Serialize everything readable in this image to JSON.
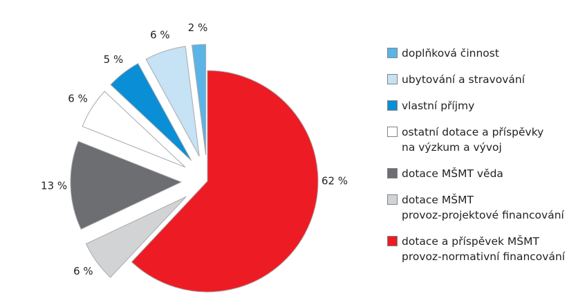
{
  "chart_data": {
    "type": "pie",
    "categories": [
      "doplňková činnost",
      "ubytování a stravování",
      "vlastní příjmy",
      "ostatní dotace a příspěvky\nna výzkum a vývoj",
      "dotace MŠMT věda",
      "dotace MŠMT\nprovoz-projektové financování",
      "dotace a příspěvek MŠMT\nprovoz-normativní financování"
    ],
    "values": [
      2,
      6,
      5,
      6,
      13,
      6,
      62
    ],
    "value_labels": [
      "2 %",
      "6 %",
      "5 %",
      "6 %",
      "13 %",
      "6 %",
      "62 %"
    ],
    "colors": [
      "#5bb4e5",
      "#c6e2f5",
      "#0a8fd6",
      "#ffffff",
      "#6d6e71",
      "#d1d3d4",
      "#ed1c24"
    ]
  }
}
